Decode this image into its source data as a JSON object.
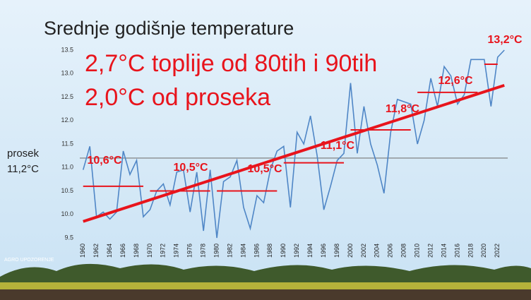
{
  "chart_data": {
    "type": "line",
    "title": "Srednje godišnje temperature",
    "annotations": [
      "2,7°C toplije od 80tih i 90tih",
      "2,0°C od proseka"
    ],
    "logo": "AGRO UPOZORENJE",
    "x": [
      1960,
      1961,
      1962,
      1963,
      1964,
      1965,
      1966,
      1967,
      1968,
      1969,
      1970,
      1971,
      1972,
      1973,
      1974,
      1975,
      1976,
      1977,
      1978,
      1979,
      1980,
      1981,
      1982,
      1983,
      1984,
      1985,
      1986,
      1987,
      1988,
      1989,
      1990,
      1991,
      1992,
      1993,
      1994,
      1995,
      1996,
      1997,
      1998,
      1999,
      2000,
      2001,
      2002,
      2003,
      2004,
      2005,
      2006,
      2007,
      2008,
      2009,
      2010,
      2011,
      2012,
      2013,
      2014,
      2015,
      2016,
      2017,
      2018,
      2019,
      2020,
      2021,
      2022,
      2023
    ],
    "series": [
      {
        "color": "#4f86c6",
        "values": [
          10.95,
          11.45,
          9.95,
          10.05,
          9.9,
          10.05,
          11.35,
          10.85,
          11.15,
          9.95,
          10.1,
          10.5,
          10.65,
          10.2,
          10.9,
          10.95,
          10.05,
          10.9,
          9.65,
          10.95,
          9.5,
          10.7,
          10.8,
          11.15,
          10.15,
          9.7,
          10.4,
          10.25,
          10.95,
          11.35,
          11.45,
          10.15,
          11.75,
          11.5,
          12.1,
          11.25,
          10.1,
          10.6,
          11.15,
          11.3,
          12.8,
          11.3,
          12.3,
          11.5,
          11.05,
          10.45,
          11.75,
          12.45,
          12.4,
          12.35,
          11.5,
          12.0,
          12.9,
          12.3,
          13.15,
          12.95,
          12.35,
          12.55,
          13.3,
          13.3,
          13.3,
          12.3,
          13.35,
          13.5
        ]
      }
    ],
    "average": {
      "name": "prosek",
      "value": 11.2,
      "value_label": "11,2°C",
      "color": "#777777"
    },
    "trend": {
      "x": [
        1960,
        2023
      ],
      "values": [
        9.85,
        12.75
      ],
      "color": "#e8141c"
    },
    "decades": {
      "color": "#e8141c",
      "start": [
        1960,
        1970,
        1980,
        1990,
        2000,
        2010,
        2020
      ],
      "end": [
        1969,
        1979,
        1989,
        1999,
        2009,
        2019,
        2022
      ],
      "values": [
        10.6,
        10.5,
        10.5,
        11.1,
        11.8,
        12.6,
        13.2
      ],
      "value_labels": [
        "10,6°C",
        "10,5°C",
        "10,5°C",
        "11,1°C",
        "11,8°C",
        "12,6°C",
        "13,2°C"
      ]
    },
    "xlim": [
      1959.5,
      2023.5
    ],
    "xticks": [
      1960,
      1962,
      1964,
      1966,
      1968,
      1970,
      1972,
      1974,
      1976,
      1978,
      1980,
      1982,
      1984,
      1986,
      1988,
      1990,
      1992,
      1994,
      1996,
      1998,
      2000,
      2002,
      2004,
      2006,
      2008,
      2010,
      2012,
      2014,
      2016,
      2018,
      2020,
      2022
    ],
    "ylim": [
      9.4,
      13.6
    ],
    "yticks": [
      9.5,
      {
        "value": 10,
        "label": "10.0"
      },
      10.5,
      {
        "value": 11,
        "label": "11.0"
      },
      11.5,
      {
        "value": 12,
        "label": "12.0"
      },
      12.5,
      {
        "value": 13,
        "label": "13.0"
      },
      13.5
    ],
    "grid": false
  }
}
